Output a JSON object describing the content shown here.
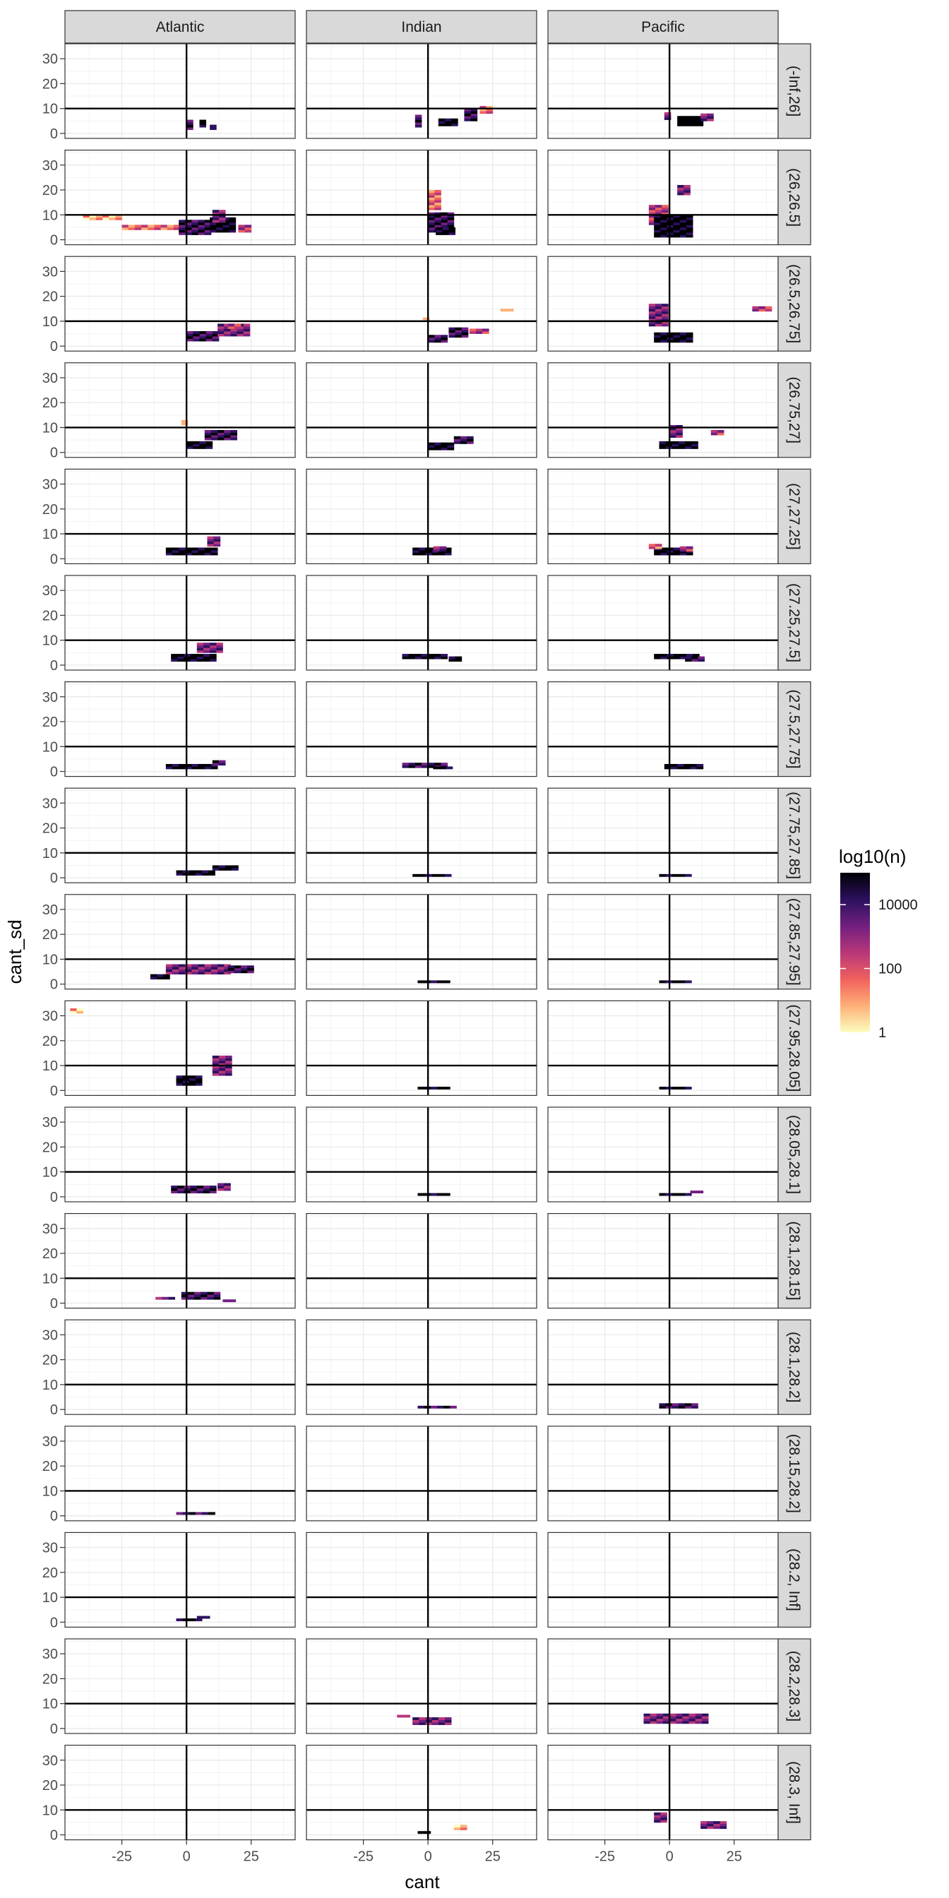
{
  "chart_data": {
    "type": "heatmap",
    "facet_columns": [
      "Atlantic",
      "Indian",
      "Pacific"
    ],
    "facet_rows": [
      "(-Inf,26]",
      "(26,26.5]",
      "(26.5,26.75]",
      "(26.75,27]",
      "(27,27.25]",
      "(27.25,27.5]",
      "(27.5,27.75]",
      "(27.75,27.85]",
      "(27.85,27.95]",
      "(27.95,28.05]",
      "(28.05,28.1]",
      "(28.1,28.15]",
      "(28.1,28.2]",
      "(28.15,28.2]",
      "(28.2, Inf]",
      "(28.2,28.3]",
      "(28.3, Inf]"
    ],
    "xlabel": "cant",
    "ylabel": "cant_sd",
    "xlim": [
      -47,
      42
    ],
    "ylim": [
      -2,
      36
    ],
    "x_ticks": [
      -25,
      0,
      25
    ],
    "y_ticks": [
      0,
      10,
      20,
      30
    ],
    "x_tick_labels": [
      "-25",
      "0",
      "25"
    ],
    "y_tick_labels": [
      "0",
      "10",
      "20",
      "30"
    ],
    "reference_lines": {
      "vline_x": 0,
      "hline_y": 10
    },
    "bin_width": {
      "x": 2.5,
      "y": 1
    },
    "grid": true,
    "legend": {
      "title": "log10(n)",
      "position": "right",
      "breaks": [
        1,
        100,
        10000
      ],
      "labels": [
        "1",
        "100",
        "10000"
      ],
      "colors": [
        "#fcfdbf",
        "#feb078",
        "#f1605d",
        "#b73779",
        "#721f81",
        "#2c115f",
        "#000004"
      ]
    },
    "cells": {
      "0_0": [
        [
          0,
          1.5,
          1.5,
          4,
          5
        ],
        [
          5,
          2.5,
          1.5,
          3,
          6
        ],
        [
          9,
          1.5,
          2.5,
          2,
          5
        ]
      ],
      "0_1": [
        [
          -5,
          2.5,
          2,
          5,
          5
        ],
        [
          4,
          3,
          8,
          3,
          6
        ],
        [
          14,
          5,
          5,
          5,
          5
        ],
        [
          20,
          8,
          5,
          3,
          2
        ]
      ],
      "0_2": [
        [
          -2,
          5.5,
          2,
          3,
          4
        ],
        [
          3,
          3,
          10,
          4,
          7
        ],
        [
          12,
          5,
          5,
          3,
          4
        ]
      ],
      "1_0": [
        [
          -40,
          8,
          15,
          2,
          1
        ],
        [
          -25,
          4,
          22,
          2,
          2
        ],
        [
          -3,
          2,
          12,
          6,
          5
        ],
        [
          9,
          3,
          9,
          6,
          6
        ],
        [
          10,
          7,
          5,
          5,
          4
        ],
        [
          20,
          3,
          5,
          3,
          3
        ]
      ],
      "1_1": [
        [
          0,
          3,
          10,
          8,
          5
        ],
        [
          0,
          12,
          6,
          8,
          2
        ],
        [
          3,
          2,
          8,
          3,
          6
        ]
      ],
      "1_2": [
        [
          -8,
          6,
          7,
          8,
          3
        ],
        [
          -6,
          1,
          16,
          9,
          6
        ],
        [
          3,
          18,
          5,
          4,
          4
        ]
      ],
      "2_0": [
        [
          0,
          2,
          12,
          4,
          5
        ],
        [
          12,
          4,
          12,
          5,
          4
        ],
        [
          16,
          7,
          6,
          2,
          3
        ]
      ],
      "2_1": [
        [
          0,
          1.5,
          8,
          3,
          5
        ],
        [
          8,
          3.5,
          8,
          4,
          5
        ],
        [
          16,
          5,
          8,
          2,
          3
        ],
        [
          28,
          14,
          6,
          1,
          1
        ],
        [
          -2,
          10.5,
          2,
          1,
          1
        ]
      ],
      "2_2": [
        [
          -8,
          8,
          8,
          9,
          4
        ],
        [
          -6,
          1.5,
          16,
          4,
          6
        ],
        [
          32,
          14,
          8,
          2,
          3
        ]
      ],
      "3_0": [
        [
          0,
          1.5,
          10,
          3,
          6
        ],
        [
          7,
          5,
          12,
          4,
          5
        ],
        [
          -2,
          11,
          3,
          2,
          1
        ]
      ],
      "3_1": [
        [
          0,
          1,
          10,
          3,
          6
        ],
        [
          10,
          3.5,
          8,
          3,
          5
        ]
      ],
      "3_2": [
        [
          -4,
          1.5,
          16,
          3,
          6
        ],
        [
          0,
          6,
          6,
          5,
          4
        ],
        [
          16,
          7,
          6,
          2,
          3
        ]
      ],
      "4_0": [
        [
          -8,
          1.5,
          20,
          3,
          6
        ],
        [
          8,
          5,
          6,
          4,
          4
        ]
      ],
      "4_1": [
        [
          -6,
          1.5,
          16,
          3,
          6
        ],
        [
          2,
          3,
          4,
          2,
          4
        ]
      ],
      "4_2": [
        [
          -6,
          1.5,
          16,
          3,
          6
        ],
        [
          -8,
          4,
          6,
          2,
          2
        ],
        [
          4,
          3,
          6,
          2,
          3
        ]
      ],
      "5_0": [
        [
          -6,
          1.5,
          18,
          3,
          6
        ],
        [
          4,
          5,
          10,
          4,
          4
        ]
      ],
      "5_1": [
        [
          -10,
          2.5,
          18,
          2,
          6
        ],
        [
          8,
          1.5,
          6,
          2,
          6
        ]
      ],
      "5_2": [
        [
          -6,
          2.5,
          18,
          2,
          6
        ],
        [
          6,
          1.5,
          8,
          2,
          5
        ]
      ],
      "6_0": [
        [
          -8,
          1,
          20,
          2,
          6
        ],
        [
          10,
          2.5,
          6,
          2,
          5
        ]
      ],
      "6_1": [
        [
          -10,
          1.5,
          18,
          2,
          5
        ],
        [
          2,
          1,
          8,
          1,
          6
        ]
      ],
      "6_2": [
        [
          -2,
          1,
          14,
          2,
          6
        ]
      ],
      "7_0": [
        [
          -4,
          1,
          14,
          2,
          6
        ],
        [
          10,
          3,
          10,
          2,
          6
        ]
      ],
      "7_1": [
        [
          -6,
          0.5,
          14,
          1,
          6
        ]
      ],
      "7_2": [
        [
          -4,
          0.5,
          12,
          1,
          6
        ]
      ],
      "8_0": [
        [
          -14,
          2,
          8,
          2,
          6
        ],
        [
          -8,
          4,
          24,
          4,
          4
        ],
        [
          16,
          4.5,
          10,
          3,
          5
        ]
      ],
      "8_1": [
        [
          -4,
          0.5,
          12,
          1,
          6
        ]
      ],
      "8_2": [
        [
          -4,
          0.5,
          12,
          1,
          6
        ]
      ],
      "9_0": [
        [
          -4,
          2,
          10,
          4,
          6
        ],
        [
          10,
          6,
          8,
          8,
          4
        ],
        [
          -45,
          31,
          6,
          2,
          1
        ]
      ],
      "9_1": [
        [
          -4,
          0.5,
          12,
          1,
          6
        ]
      ],
      "9_2": [
        [
          -4,
          0.5,
          12,
          1,
          6
        ]
      ],
      "10_0": [
        [
          -6,
          1.5,
          18,
          3,
          5
        ],
        [
          12,
          2.5,
          4,
          3,
          4
        ]
      ],
      "10_1": [
        [
          -4,
          0.5,
          12,
          1,
          6
        ]
      ],
      "10_2": [
        [
          -4,
          0.5,
          12,
          1,
          6
        ],
        [
          8,
          1.5,
          4,
          1,
          4
        ]
      ],
      "11_0": [
        [
          -12,
          1.5,
          8,
          1,
          4
        ],
        [
          -2,
          1.5,
          14,
          3,
          5
        ],
        [
          14,
          0.5,
          6,
          1,
          4
        ]
      ],
      "11_1": [],
      "11_2": [],
      "12_0": [],
      "12_1": [
        [
          -4,
          0.5,
          16,
          1,
          5
        ]
      ],
      "12_2": [
        [
          -4,
          0.5,
          16,
          2,
          5
        ]
      ],
      "13_0": [
        [
          -4,
          0.5,
          14,
          1,
          5
        ]
      ],
      "13_1": [],
      "13_2": [],
      "14_0": [
        [
          -4,
          0.5,
          10,
          1,
          6
        ],
        [
          4,
          1.5,
          4,
          1,
          5
        ]
      ],
      "14_1": [],
      "14_2": [],
      "15_0": [],
      "15_1": [
        [
          -12,
          4.5,
          4,
          1,
          3
        ],
        [
          -6,
          1.5,
          16,
          3,
          4
        ]
      ],
      "15_2": [
        [
          -10,
          2,
          24,
          4,
          4
        ]
      ],
      "16_0": [],
      "16_1": [
        [
          -4,
          0.5,
          6,
          1,
          6
        ],
        [
          10,
          2,
          4,
          2,
          1
        ]
      ],
      "16_2": [
        [
          -6,
          5,
          6,
          4,
          4
        ],
        [
          12,
          2.5,
          10,
          3,
          4
        ]
      ]
    }
  }
}
